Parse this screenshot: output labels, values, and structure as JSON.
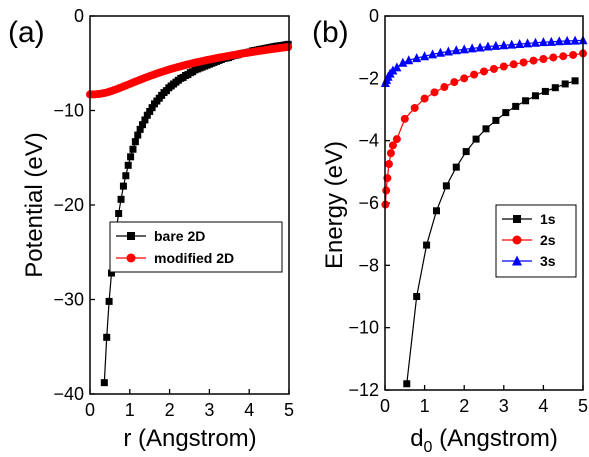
{
  "chart_data": [
    {
      "type": "line",
      "panel_label": "(a)",
      "xlabel": "r (Angstrom)",
      "ylabel": "Potential (eV)",
      "xlim": [
        0,
        5
      ],
      "ylim": [
        -40,
        0
      ],
      "xticks": [
        0,
        1,
        2,
        3,
        4,
        5
      ],
      "yticks": [
        0,
        -10,
        -20,
        -30,
        -40
      ],
      "legend_position": "center-right",
      "series": [
        {
          "name": "bare 2D",
          "color": "#000000",
          "marker": "square",
          "x": [
            0.36,
            0.42,
            0.48,
            0.54,
            0.6,
            0.66,
            0.72,
            0.78,
            0.84,
            0.9,
            0.96,
            1.02,
            1.08,
            1.14,
            1.2,
            1.26,
            1.32,
            1.38,
            1.44,
            1.5,
            1.56,
            1.62,
            1.68,
            1.74,
            1.8,
            1.86,
            1.92,
            1.98,
            2.04,
            2.1,
            2.16,
            2.22,
            2.28,
            2.34,
            2.4,
            2.46,
            2.52,
            2.58,
            2.64,
            2.7,
            2.76,
            2.82,
            2.88,
            2.94,
            3.0,
            3.06,
            3.12,
            3.18,
            3.24,
            3.3,
            3.36,
            3.42,
            3.48,
            3.54,
            3.6,
            3.66,
            3.72,
            3.78,
            3.84,
            3.9,
            3.96,
            4.02,
            4.08,
            4.14,
            4.2,
            4.26,
            4.32,
            4.38,
            4.44,
            4.5,
            4.56,
            4.62,
            4.68,
            4.74,
            4.8,
            4.86,
            4.92,
            4.98
          ],
          "y": [
            -38.8,
            -34.0,
            -30.2,
            -27.2,
            -24.7,
            -22.6,
            -20.9,
            -19.4,
            -18.0,
            -16.9,
            -15.8,
            -14.9,
            -14.1,
            -13.3,
            -12.6,
            -12.0,
            -11.5,
            -11.0,
            -10.5,
            -10.1,
            -9.7,
            -9.3,
            -9.0,
            -8.7,
            -8.4,
            -8.1,
            -7.9,
            -7.6,
            -7.4,
            -7.2,
            -7.0,
            -6.8,
            -6.6,
            -6.5,
            -6.3,
            -6.2,
            -6.0,
            -5.9,
            -5.7,
            -5.6,
            -5.5,
            -5.4,
            -5.3,
            -5.2,
            -5.1,
            -5.0,
            -4.9,
            -4.8,
            -4.7,
            -4.6,
            -4.5,
            -4.45,
            -4.4,
            -4.3,
            -4.2,
            -4.15,
            -4.1,
            -4.0,
            -3.95,
            -3.9,
            -3.85,
            -3.8,
            -3.7,
            -3.65,
            -3.6,
            -3.55,
            -3.5,
            -3.45,
            -3.4,
            -3.35,
            -3.3,
            -3.25,
            -3.2,
            -3.17,
            -3.13,
            -3.1,
            -3.05,
            -3.0
          ]
        },
        {
          "name": "modified 2D",
          "color": "#ff0000",
          "marker": "circle",
          "x": [
            0.0,
            0.06,
            0.12,
            0.18,
            0.24,
            0.3,
            0.36,
            0.42,
            0.48,
            0.54,
            0.6,
            0.66,
            0.72,
            0.78,
            0.84,
            0.9,
            0.96,
            1.02,
            1.08,
            1.14,
            1.2,
            1.26,
            1.32,
            1.38,
            1.44,
            1.5,
            1.56,
            1.62,
            1.68,
            1.74,
            1.8,
            1.86,
            1.92,
            1.98,
            2.04,
            2.1,
            2.16,
            2.22,
            2.28,
            2.34,
            2.4,
            2.46,
            2.52,
            2.58,
            2.64,
            2.7,
            2.76,
            2.82,
            2.88,
            2.94,
            3.0,
            3.06,
            3.12,
            3.18,
            3.24,
            3.3,
            3.36,
            3.42,
            3.48,
            3.54,
            3.6,
            3.66,
            3.72,
            3.78,
            3.84,
            3.9,
            3.96,
            4.02,
            4.08,
            4.14,
            4.2,
            4.26,
            4.32,
            4.38,
            4.44,
            4.5,
            4.56,
            4.62,
            4.68,
            4.74,
            4.8,
            4.86,
            4.92,
            4.98
          ],
          "y": [
            -8.3,
            -8.3,
            -8.29,
            -8.27,
            -8.24,
            -8.2,
            -8.15,
            -8.09,
            -8.02,
            -7.94,
            -7.85,
            -7.76,
            -7.66,
            -7.56,
            -7.46,
            -7.36,
            -7.26,
            -7.16,
            -7.05,
            -6.95,
            -6.85,
            -6.75,
            -6.65,
            -6.55,
            -6.45,
            -6.36,
            -6.27,
            -6.18,
            -6.09,
            -6.0,
            -5.92,
            -5.84,
            -5.76,
            -5.68,
            -5.6,
            -5.53,
            -5.46,
            -5.39,
            -5.32,
            -5.25,
            -5.19,
            -5.12,
            -5.06,
            -5.0,
            -4.94,
            -4.88,
            -4.83,
            -4.77,
            -4.72,
            -4.66,
            -4.61,
            -4.56,
            -4.51,
            -4.46,
            -4.41,
            -4.36,
            -4.32,
            -4.27,
            -4.23,
            -4.18,
            -4.14,
            -4.1,
            -4.05,
            -4.01,
            -3.97,
            -3.93,
            -3.89,
            -3.85,
            -3.81,
            -3.77,
            -3.73,
            -3.69,
            -3.66,
            -3.62,
            -3.58,
            -3.55,
            -3.51,
            -3.48,
            -3.44,
            -3.41,
            -3.37,
            -3.34,
            -3.31,
            -3.28
          ]
        }
      ]
    },
    {
      "type": "line",
      "panel_label": "(b)",
      "xlabel_main": "d",
      "xlabel_sub": "0",
      "xlabel_rest": " (Angstrom)",
      "ylabel": "Energy (eV)",
      "xlim": [
        0,
        5
      ],
      "ylim": [
        -12,
        0
      ],
      "xticks": [
        0,
        1,
        2,
        3,
        4,
        5
      ],
      "yticks": [
        0,
        -2,
        -4,
        -6,
        -8,
        -10,
        -12
      ],
      "legend_position": "center-right",
      "series": [
        {
          "name": "1s",
          "color": "#000000",
          "marker": "square",
          "x": [
            0.55,
            0.8,
            1.05,
            1.3,
            1.55,
            1.8,
            2.05,
            2.3,
            2.55,
            2.8,
            3.05,
            3.3,
            3.55,
            3.8,
            4.05,
            4.3,
            4.55,
            4.8
          ],
          "y": [
            -11.8,
            -9.0,
            -7.35,
            -6.25,
            -5.45,
            -4.85,
            -4.35,
            -3.95,
            -3.62,
            -3.35,
            -3.1,
            -2.9,
            -2.72,
            -2.56,
            -2.42,
            -2.3,
            -2.18,
            -2.08
          ]
        },
        {
          "name": "2s",
          "color": "#ff0000",
          "marker": "circle",
          "x": [
            0.01,
            0.03,
            0.06,
            0.1,
            0.15,
            0.2,
            0.3,
            0.5,
            0.75,
            1.0,
            1.25,
            1.5,
            1.75,
            2.0,
            2.25,
            2.5,
            2.75,
            3.0,
            3.25,
            3.5,
            3.75,
            4.0,
            4.25,
            4.5,
            4.75,
            5.0
          ],
          "y": [
            -6.05,
            -5.6,
            -5.2,
            -4.75,
            -4.4,
            -4.15,
            -3.95,
            -3.3,
            -2.95,
            -2.65,
            -2.45,
            -2.28,
            -2.12,
            -2.0,
            -1.88,
            -1.78,
            -1.7,
            -1.62,
            -1.55,
            -1.49,
            -1.43,
            -1.38,
            -1.33,
            -1.29,
            -1.25,
            -1.2
          ]
        },
        {
          "name": "3s",
          "color": "#0000ff",
          "marker": "triangle",
          "x": [
            0.01,
            0.04,
            0.08,
            0.13,
            0.2,
            0.3,
            0.45,
            0.6,
            0.8,
            1.0,
            1.2,
            1.4,
            1.6,
            1.8,
            2.0,
            2.2,
            2.4,
            2.6,
            2.8,
            3.0,
            3.2,
            3.4,
            3.6,
            3.8,
            4.0,
            4.2,
            4.4,
            4.6,
            4.8,
            5.0
          ],
          "y": [
            -2.15,
            -2.05,
            -1.95,
            -1.85,
            -1.75,
            -1.65,
            -1.5,
            -1.42,
            -1.35,
            -1.29,
            -1.23,
            -1.18,
            -1.14,
            -1.1,
            -1.07,
            -1.04,
            -1.01,
            -0.98,
            -0.96,
            -0.94,
            -0.92,
            -0.9,
            -0.88,
            -0.86,
            -0.84,
            -0.83,
            -0.81,
            -0.8,
            -0.79,
            -0.78
          ]
        }
      ]
    }
  ]
}
